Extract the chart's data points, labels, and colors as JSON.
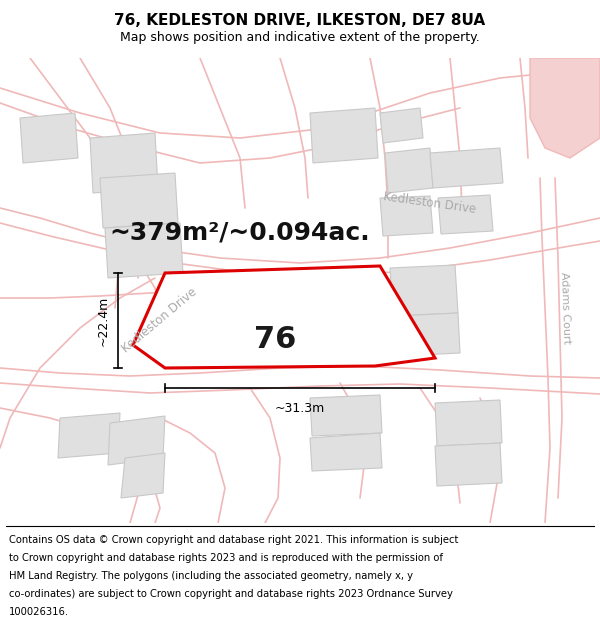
{
  "title": "76, KEDLESTON DRIVE, ILKESTON, DE7 8UA",
  "subtitle": "Map shows position and indicative extent of the property.",
  "area_text": "~379m²/~0.094ac.",
  "number_label": "76",
  "dim_width": "~31.3m",
  "dim_height": "~22.4m",
  "footer_lines": [
    "Contains OS data © Crown copyright and database right 2021. This information is subject",
    "to Crown copyright and database rights 2023 and is reproduced with the permission of",
    "HM Land Registry. The polygons (including the associated geometry, namely x, y",
    "co-ordinates) are subject to Crown copyright and database rights 2023 Ordnance Survey",
    "100026316."
  ],
  "map_bg": "#ffffff",
  "road_color": "#f0b8b8",
  "road_thin_color": "#f0b8b8",
  "plot_edge_color": "#dd0000",
  "block_fill": "#e0e0e0",
  "block_edge": "#c8c8c8",
  "pink_area_fill": "#f5d0d0",
  "title_fontsize": 11,
  "subtitle_fontsize": 9,
  "footer_fontsize": 7.2,
  "label_fontsize": 22,
  "area_fontsize": 18,
  "dim_fontsize": 9
}
